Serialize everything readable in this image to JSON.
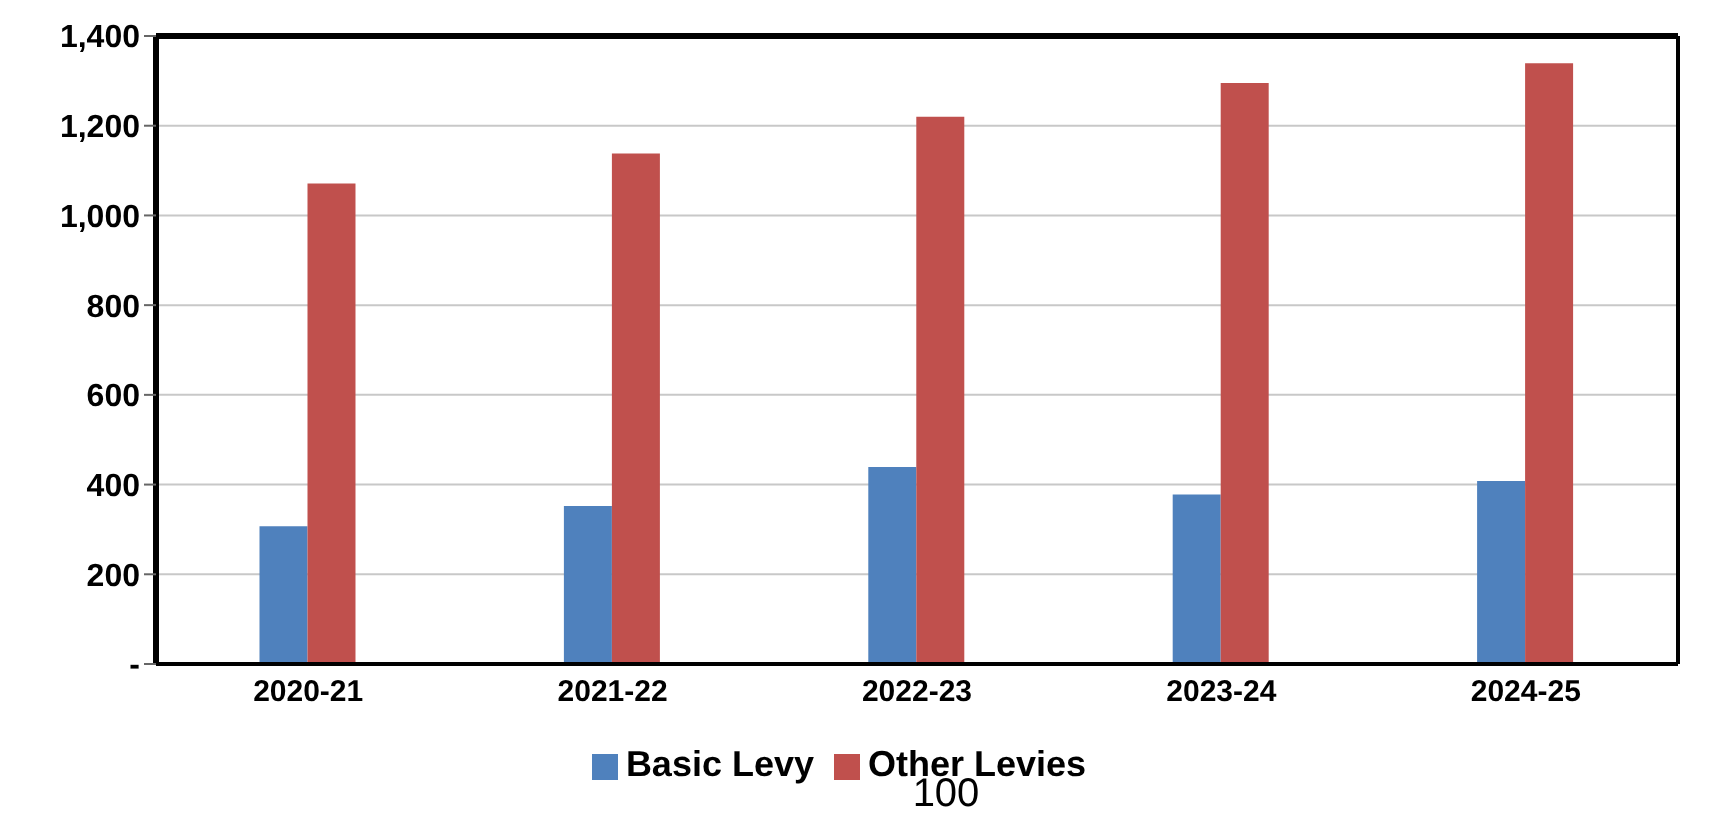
{
  "chart_data": {
    "type": "bar",
    "categories": [
      "2020-21",
      "2021-22",
      "2022-23",
      "2023-24",
      "2024-25"
    ],
    "series": [
      {
        "name": "Basic Levy",
        "color": "#4f81bd",
        "values": [
          307,
          352,
          439,
          378,
          408
        ]
      },
      {
        "name": "Other Levies",
        "color": "#c0504d",
        "values": [
          1071,
          1138,
          1220,
          1295,
          1339
        ]
      }
    ],
    "ylim": [
      0,
      1400
    ],
    "yticks": [
      {
        "value": 0,
        "label": "-"
      },
      {
        "value": 200,
        "label": "200"
      },
      {
        "value": 400,
        "label": "400"
      },
      {
        "value": 600,
        "label": "600"
      },
      {
        "value": 800,
        "label": "800"
      },
      {
        "value": 1000,
        "label": "1,000"
      },
      {
        "value": 1200,
        "label": "1,200"
      },
      {
        "value": 1400,
        "label": "1,400"
      }
    ],
    "grid": "y",
    "legend": "bottom",
    "annotations": [
      "100"
    ]
  }
}
